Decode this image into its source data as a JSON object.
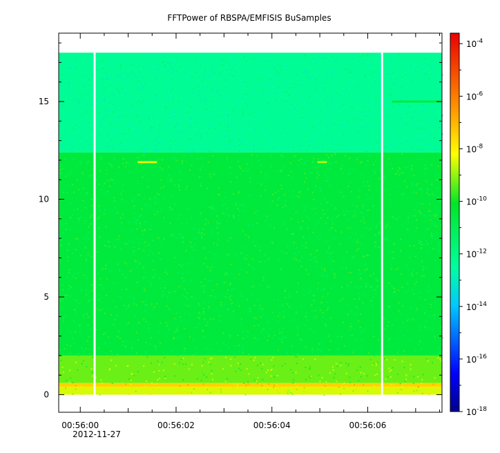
{
  "chart_data": {
    "type": "heatmap",
    "title": "FFTPower of RBSPA/EMFISIS  BuSamples",
    "xlabel": "",
    "ylabel": "",
    "date_label": "2012-11-27",
    "x_tick_labels": [
      "00:56:00",
      "00:56:02",
      "00:56:04",
      "00:56:06"
    ],
    "x_tick_seconds": [
      0,
      2,
      4,
      6
    ],
    "x_range_seconds": [
      -0.45,
      7.55
    ],
    "y_ticks": [
      0,
      5,
      10,
      15
    ],
    "y_tick_labels": [
      "0",
      "5",
      "10",
      "15"
    ],
    "y_range": [
      -0.9,
      18.5
    ],
    "y_data_max": 17.5,
    "color_scale": "log",
    "colorbar_range": [
      -18,
      -3.6
    ],
    "colorbar_exponents": [
      -4,
      -6,
      -8,
      -10,
      -12,
      -14,
      -16,
      -18
    ],
    "colorbar_base": "10",
    "bands": [
      {
        "y_from": 0,
        "y_to": 0.4,
        "log_power": -8.5
      },
      {
        "y_from": 0.4,
        "y_to": 0.6,
        "log_power": -7.5
      },
      {
        "y_from": 0.6,
        "y_to": 2.0,
        "log_power": -9.3
      },
      {
        "y_from": 2.0,
        "y_to": 12.4,
        "log_power": -10.5
      },
      {
        "y_from": 12.4,
        "y_to": 17.5,
        "log_power": -12.3
      }
    ],
    "data_gaps_seconds": [
      0.3,
      6.3
    ],
    "features": [
      {
        "t_from": 1.2,
        "t_to": 1.6,
        "y": 11.9,
        "log_power": -8.4
      },
      {
        "t_from": 4.95,
        "t_to": 5.15,
        "y": 11.9,
        "log_power": -8.8
      },
      {
        "t_from": 6.5,
        "t_to": 7.55,
        "y": 15.0,
        "log_power": -10.5
      }
    ]
  }
}
